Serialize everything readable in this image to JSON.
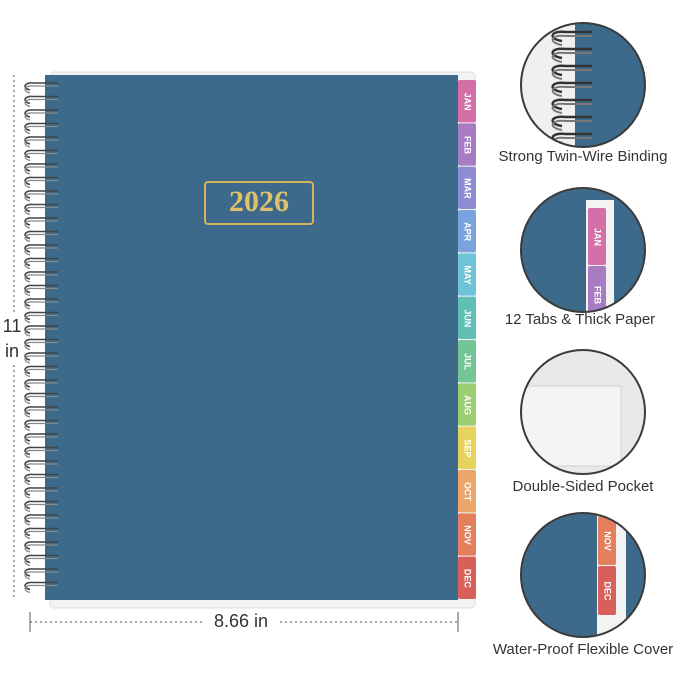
{
  "cover": {
    "year": "2026",
    "color": "#3d6a8a"
  },
  "tabs": [
    {
      "label": "JAN",
      "color": "#d46fa8"
    },
    {
      "label": "FEB",
      "color": "#a77cc2"
    },
    {
      "label": "MAR",
      "color": "#8e8cd2"
    },
    {
      "label": "APR",
      "color": "#7aa3dd"
    },
    {
      "label": "MAY",
      "color": "#6fc3d8"
    },
    {
      "label": "JUN",
      "color": "#5fbfb6"
    },
    {
      "label": "JUL",
      "color": "#73c598"
    },
    {
      "label": "AUG",
      "color": "#9acf72"
    },
    {
      "label": "SEP",
      "color": "#e6d35c"
    },
    {
      "label": "OCT",
      "color": "#eca66b"
    },
    {
      "label": "NOV",
      "color": "#e47f5e"
    },
    {
      "label": "DEC",
      "color": "#d7615a"
    }
  ],
  "dimensions": {
    "height": {
      "value": "11",
      "unit": "in"
    },
    "width": "8.66 in"
  },
  "features": [
    {
      "caption": "Strong Twin-Wire Binding"
    },
    {
      "caption": "12 Tabs & Thick Paper",
      "tabs": [
        "JAN",
        "FEB"
      ]
    },
    {
      "caption": "Double-Sided Pocket"
    },
    {
      "caption": "Water-Proof Flexible Cover",
      "tabs": [
        "NOV",
        "DEC"
      ]
    }
  ]
}
